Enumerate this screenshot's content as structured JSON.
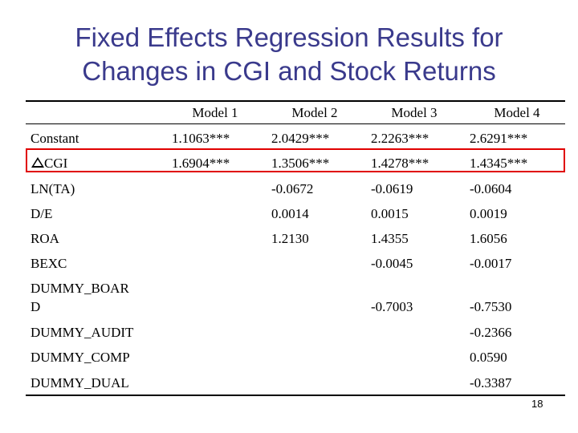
{
  "title": {
    "line1": "Fixed Effects Regression Results for",
    "line2": "Changes in CGI and Stock Returns"
  },
  "columns": [
    "Model 1",
    "Model 2",
    "Model 3",
    "Model 4"
  ],
  "rows": [
    {
      "label": "Constant",
      "values": [
        "1.1063***",
        "2.0429***",
        "2.2263***",
        "2.6291***"
      ]
    },
    {
      "label": "CGI",
      "delta_symbol": true,
      "values": [
        "1.6904***",
        "1.3506***",
        "1.4278***",
        "1.4345***"
      ]
    },
    {
      "label": "LN(TA)",
      "values": [
        "",
        "-0.0672",
        "-0.0619",
        "-0.0604"
      ]
    },
    {
      "label": "D/E",
      "values": [
        "",
        "0.0014",
        "0.0015",
        "0.0019"
      ]
    },
    {
      "label": "ROA",
      "values": [
        "",
        "1.2130",
        "1.4355",
        "1.6056"
      ]
    },
    {
      "label": "BEXC",
      "values": [
        "",
        "",
        "-0.0045",
        "-0.0017"
      ]
    },
    {
      "label_line1": "DUMMY_BOAR",
      "label_line2": "D",
      "values": [
        "",
        "",
        "-0.7003",
        "-0.7530"
      ]
    },
    {
      "label": "DUMMY_AUDIT",
      "values": [
        "",
        "",
        "",
        "-0.2366"
      ]
    },
    {
      "label": "DUMMY_COMP",
      "values": [
        "",
        "",
        "",
        "0.0590"
      ]
    },
    {
      "label": "DUMMY_DUAL",
      "values": [
        "",
        "",
        "",
        "-0.3387"
      ]
    }
  ],
  "highlight_color": "#e00000",
  "title_color": "#3a3a8c",
  "page_number": "18"
}
